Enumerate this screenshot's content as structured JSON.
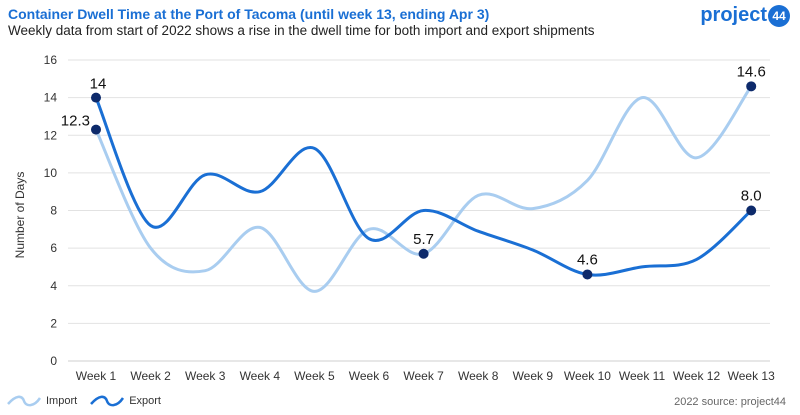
{
  "header": {
    "title": "Container Dwell Time at the Port of Tacoma (until week 13, ending Apr 3)",
    "subtitle": "Weekly data from start of 2022 shows a rise in the dwell time for both import and export shipments",
    "logo_text": "project",
    "logo_badge": "44"
  },
  "footer": {
    "source": "2022 source: project44"
  },
  "colors": {
    "import": "#a9cdf0",
    "export": "#1a6fd4",
    "marker": "#0d2a6b",
    "title": "#1a6fd4"
  },
  "chart_data": {
    "type": "line",
    "title": "Container Dwell Time at the Port of Tacoma (until week 13, ending Apr 3)",
    "xlabel": "",
    "ylabel": "Number of Days",
    "ylim": [
      0,
      16
    ],
    "yticks": [
      0,
      2,
      4,
      6,
      8,
      10,
      12,
      14,
      16
    ],
    "grid": true,
    "legend_position": "bottom-left",
    "categories": [
      "Week 1",
      "Week 2",
      "Week 3",
      "Week 4",
      "Week 5",
      "Week 6",
      "Week 7",
      "Week 8",
      "Week 9",
      "Week 10",
      "Week 11",
      "Week 12",
      "Week 13"
    ],
    "series": [
      {
        "name": "Import",
        "values": [
          12.3,
          6.0,
          4.8,
          7.1,
          3.7,
          7.0,
          5.7,
          8.8,
          8.1,
          9.6,
          14.0,
          10.8,
          14.6
        ]
      },
      {
        "name": "Export",
        "values": [
          14.0,
          7.2,
          9.9,
          9.0,
          11.3,
          6.5,
          8.0,
          6.9,
          5.9,
          4.6,
          5.0,
          5.4,
          8.0
        ]
      }
    ],
    "annotations": [
      {
        "series": "Export",
        "index": 0,
        "label": "14"
      },
      {
        "series": "Import",
        "index": 0,
        "label": "12.3"
      },
      {
        "series": "Import",
        "index": 6,
        "label": "5.7"
      },
      {
        "series": "Export",
        "index": 9,
        "label": "4.6"
      },
      {
        "series": "Import",
        "index": 12,
        "label": "14.6"
      },
      {
        "series": "Export",
        "index": 12,
        "label": "8.0"
      }
    ]
  }
}
